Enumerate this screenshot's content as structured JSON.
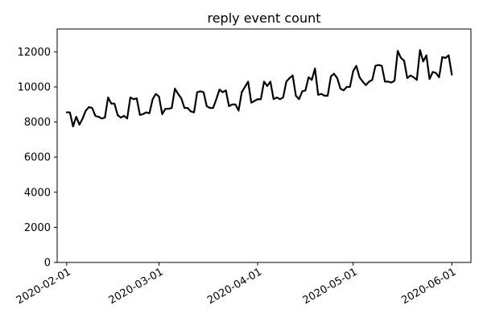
{
  "chart_data": {
    "type": "line",
    "title": "reply event count",
    "xlabel": "",
    "ylabel": "",
    "x_axis_type": "date",
    "xlim": [
      "2020-01-29",
      "2020-06-07"
    ],
    "ylim": [
      0,
      13300
    ],
    "x_ticks": [
      "2020-02-01",
      "2020-03-01",
      "2020-04-01",
      "2020-05-01",
      "2020-06-01"
    ],
    "y_ticks": [
      0,
      2000,
      4000,
      6000,
      8000,
      10000,
      12000
    ],
    "grid": false,
    "line_color": "#000000",
    "series": [
      {
        "x": [
          "2020-02-01",
          "2020-02-02",
          "2020-02-03",
          "2020-02-04",
          "2020-02-05",
          "2020-02-06",
          "2020-02-07",
          "2020-02-08",
          "2020-02-09",
          "2020-02-10",
          "2020-02-11",
          "2020-02-12",
          "2020-02-13",
          "2020-02-14",
          "2020-02-15",
          "2020-02-16",
          "2020-02-17",
          "2020-02-18",
          "2020-02-19",
          "2020-02-20",
          "2020-02-21",
          "2020-02-22",
          "2020-02-23",
          "2020-02-24",
          "2020-02-25",
          "2020-02-26",
          "2020-02-27",
          "2020-02-28",
          "2020-02-29",
          "2020-03-01",
          "2020-03-02",
          "2020-03-03",
          "2020-03-04",
          "2020-03-05",
          "2020-03-06",
          "2020-03-07",
          "2020-03-08",
          "2020-03-09",
          "2020-03-10",
          "2020-03-11",
          "2020-03-12",
          "2020-03-13",
          "2020-03-14",
          "2020-03-15",
          "2020-03-16",
          "2020-03-17",
          "2020-03-18",
          "2020-03-19",
          "2020-03-20",
          "2020-03-21",
          "2020-03-22",
          "2020-03-23",
          "2020-03-24",
          "2020-03-25",
          "2020-03-26",
          "2020-03-27",
          "2020-03-28",
          "2020-03-29",
          "2020-03-30",
          "2020-03-31",
          "2020-04-01",
          "2020-04-02",
          "2020-04-03",
          "2020-04-04",
          "2020-04-05",
          "2020-04-06",
          "2020-04-07",
          "2020-04-08",
          "2020-04-09",
          "2020-04-10",
          "2020-04-11",
          "2020-04-12",
          "2020-04-13",
          "2020-04-14",
          "2020-04-15",
          "2020-04-16",
          "2020-04-17",
          "2020-04-18",
          "2020-04-19",
          "2020-04-20",
          "2020-04-21",
          "2020-04-22",
          "2020-04-23",
          "2020-04-24",
          "2020-04-25",
          "2020-04-26",
          "2020-04-27",
          "2020-04-28",
          "2020-04-29",
          "2020-04-30",
          "2020-05-01",
          "2020-05-02",
          "2020-05-03",
          "2020-05-04",
          "2020-05-05",
          "2020-05-06",
          "2020-05-07",
          "2020-05-08",
          "2020-05-09",
          "2020-05-10",
          "2020-05-11",
          "2020-05-12",
          "2020-05-13",
          "2020-05-14",
          "2020-05-15",
          "2020-05-16",
          "2020-05-17",
          "2020-05-18",
          "2020-05-19",
          "2020-05-20",
          "2020-05-21",
          "2020-05-22",
          "2020-05-23",
          "2020-05-24",
          "2020-05-25",
          "2020-05-26",
          "2020-05-27",
          "2020-05-28",
          "2020-05-29",
          "2020-05-30",
          "2020-05-31",
          "2020-06-01"
        ],
        "values": [
          8550,
          8550,
          7750,
          8300,
          7850,
          8200,
          8650,
          8850,
          8800,
          8350,
          8300,
          8200,
          8250,
          9400,
          9050,
          9050,
          8400,
          8250,
          8350,
          8200,
          9400,
          9300,
          9350,
          8400,
          8450,
          8550,
          8500,
          9300,
          9600,
          9450,
          8450,
          8750,
          8750,
          8800,
          9900,
          9600,
          9350,
          8800,
          8800,
          8600,
          8550,
          9700,
          9750,
          9700,
          8900,
          8800,
          8800,
          9300,
          9850,
          9700,
          9800,
          8900,
          9000,
          9000,
          8650,
          9700,
          10000,
          10300,
          9100,
          9200,
          9300,
          9300,
          10300,
          10050,
          10300,
          9300,
          9400,
          9300,
          9400,
          10300,
          10500,
          10650,
          9500,
          9300,
          9750,
          9800,
          10550,
          10400,
          11050,
          9550,
          9600,
          9500,
          9500,
          10600,
          10750,
          10500,
          9900,
          9800,
          10000,
          10000,
          10900,
          11200,
          10550,
          10300,
          10100,
          10300,
          10400,
          11200,
          11250,
          11200,
          10300,
          10300,
          10250,
          10350,
          12050,
          11650,
          11500,
          10500,
          10650,
          10550,
          10400,
          12100,
          11450,
          11800,
          10450,
          10850,
          10800,
          10550,
          11700,
          11650,
          11800,
          10700
        ]
      }
    ]
  }
}
